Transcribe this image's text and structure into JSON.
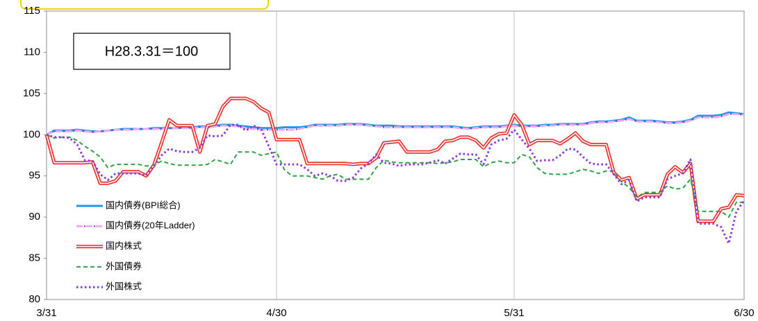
{
  "chart_data": {
    "type": "line",
    "annotation": "H28.3.31＝100",
    "categories": [
      "3/31",
      null,
      null,
      null,
      null,
      null,
      null,
      null,
      null,
      null,
      null,
      null,
      null,
      null,
      null,
      null,
      null,
      null,
      null,
      null,
      null,
      null,
      null,
      null,
      null,
      null,
      null,
      null,
      null,
      null,
      "4/30",
      null,
      null,
      null,
      null,
      null,
      null,
      null,
      null,
      null,
      null,
      null,
      null,
      null,
      null,
      null,
      null,
      null,
      null,
      null,
      null,
      null,
      null,
      null,
      null,
      null,
      null,
      null,
      null,
      null,
      null,
      "5/31",
      null,
      null,
      null,
      null,
      null,
      null,
      null,
      null,
      null,
      null,
      null,
      null,
      null,
      null,
      null,
      null,
      null,
      null,
      null,
      null,
      null,
      null,
      null,
      null,
      null,
      null,
      null,
      null,
      null,
      "6/30"
    ],
    "ylim": [
      80,
      115
    ],
    "yticks": [
      80,
      85,
      90,
      95,
      100,
      105,
      110,
      115
    ],
    "xgrid": true,
    "legend": "lower-left",
    "series": [
      {
        "name": "国内債券(BPI総合)",
        "color": "#2196e8",
        "values": [
          100,
          100.5,
          100.5,
          100.5,
          100.6,
          100.5,
          100.4,
          100.4,
          100.5,
          100.6,
          100.7,
          100.7,
          100.7,
          100.7,
          100.8,
          100.8,
          100.8,
          100.8,
          100.9,
          100.9,
          101,
          101,
          101.1,
          101.2,
          101.2,
          101.1,
          101,
          100.9,
          100.8,
          100.8,
          100.8,
          100.9,
          100.9,
          100.9,
          101,
          101.2,
          101.2,
          101.2,
          101.2,
          101.3,
          101.3,
          101.3,
          101.2,
          101.1,
          101.1,
          101.1,
          101,
          101,
          101,
          101,
          101,
          101,
          101,
          101,
          100.9,
          100.8,
          100.9,
          101,
          101,
          101,
          101.1,
          101.2,
          101.1,
          101.1,
          101.1,
          101.2,
          101.2,
          101.3,
          101.3,
          101.3,
          101.3,
          101.5,
          101.6,
          101.6,
          101.7,
          101.8,
          102.1,
          101.7,
          101.7,
          101.7,
          101.6,
          101.5,
          101.5,
          101.6,
          101.8,
          102.3,
          102.3,
          102.3,
          102.4,
          102.7,
          102.6,
          102.5
        ]
      },
      {
        "name": "国内債券(20年Ladder)",
        "color": "#f5a8f0",
        "values": [
          100,
          100.4,
          100.4,
          100.4,
          100.5,
          100.4,
          100.3,
          100.4,
          100.5,
          100.6,
          100.6,
          100.6,
          100.7,
          100.7,
          100.7,
          100.7,
          100.8,
          100.8,
          100.8,
          100.8,
          100.9,
          100.9,
          101,
          101.1,
          101.1,
          101,
          100.8,
          100.7,
          100.6,
          100.6,
          100.6,
          100.6,
          100.6,
          100.7,
          100.9,
          101.1,
          101.1,
          101.1,
          101.1,
          101.2,
          101.2,
          101.2,
          101.1,
          101,
          100.9,
          100.9,
          100.9,
          100.9,
          100.9,
          100.9,
          100.9,
          100.9,
          100.9,
          100.9,
          100.8,
          100.7,
          100.8,
          100.9,
          100.9,
          100.9,
          101,
          101.1,
          101,
          101,
          101,
          101.1,
          101.1,
          101.2,
          101.2,
          101.2,
          101.2,
          101.4,
          101.5,
          101.5,
          101.6,
          101.7,
          101.9,
          101.6,
          101.6,
          101.6,
          101.5,
          101.4,
          101.4,
          101.5,
          101.7,
          102.1,
          102.1,
          102.1,
          102.2,
          102.5,
          102.5,
          102.4
        ]
      },
      {
        "name": "国内株式",
        "color": "#e8322e",
        "values": [
          100,
          96.6,
          96.6,
          96.6,
          96.6,
          96.6,
          96.7,
          94.1,
          94.1,
          94.4,
          95.5,
          95.5,
          95.5,
          95,
          96.3,
          99,
          101.8,
          101.1,
          101.1,
          101.1,
          97.9,
          101.1,
          101.3,
          103.4,
          104.4,
          104.4,
          104.4,
          104,
          103.2,
          102.7,
          99.4,
          99.4,
          99.4,
          99.4,
          96.5,
          96.5,
          96.5,
          96.5,
          96.5,
          96.5,
          96.4,
          96.5,
          96.5,
          97.2,
          99,
          99.1,
          99.2,
          97.9,
          97.9,
          97.9,
          97.9,
          98.2,
          99.2,
          99.3,
          99.7,
          99.7,
          99.3,
          98.4,
          99.6,
          100.1,
          100.2,
          102.4,
          101.2,
          98.8,
          99.3,
          99.3,
          99.3,
          98.9,
          99.5,
          100.2,
          99.2,
          98.8,
          98.8,
          98.8,
          95.4,
          94.5,
          94.8,
          92.2,
          92.7,
          92.7,
          92.7,
          95.2,
          96.1,
          95.4,
          96.5,
          89.5,
          89.5,
          89.5,
          91,
          91.2,
          92.7,
          92.6
        ]
      },
      {
        "name": "外国債券",
        "color": "#2ca344",
        "values": [
          100,
          99.6,
          99.7,
          99.7,
          99.3,
          98.6,
          98,
          97.3,
          96,
          96.4,
          96.4,
          96.4,
          96.4,
          96.2,
          96.3,
          96.8,
          96.5,
          96.3,
          96.3,
          96.3,
          96.3,
          96.4,
          97,
          96.7,
          96.4,
          97.9,
          97.9,
          97.9,
          97.5,
          97.7,
          97.9,
          95.8,
          95,
          95,
          95,
          94.8,
          94.6,
          95,
          95.2,
          94.6,
          94.6,
          94.6,
          94.6,
          96,
          96.9,
          96.7,
          96.6,
          96.6,
          96.6,
          96.6,
          96.6,
          96.5,
          96.6,
          96.7,
          97,
          97,
          97,
          96.1,
          96.6,
          96.8,
          96.6,
          96.6,
          97.6,
          97.3,
          96,
          95.3,
          95.2,
          95.2,
          95.2,
          95.5,
          95.8,
          95.6,
          95.3,
          95.6,
          95.6,
          94.3,
          93.6,
          92.4,
          93,
          93,
          93,
          93.8,
          93.4,
          93.5,
          94.6,
          90.7,
          90.7,
          90.7,
          90.7,
          90,
          91.8,
          91.8
        ]
      },
      {
        "name": "外国株式",
        "color": "#8a3ad8",
        "values": [
          100,
          99.7,
          99.7,
          99.6,
          98.8,
          96.9,
          96.8,
          95.2,
          94.5,
          95.3,
          95.3,
          95.3,
          95.3,
          95,
          96.2,
          97.5,
          98.3,
          98,
          97.9,
          97.9,
          98.4,
          99.9,
          99.8,
          99.9,
          101.2,
          101.2,
          100.5,
          101.1,
          100.7,
          98.6,
          96.4,
          96.4,
          96.4,
          96.4,
          95.8,
          95,
          95.3,
          95,
          94.4,
          94.4,
          94.8,
          95.9,
          96.5,
          97.6,
          96.6,
          96.5,
          96.2,
          96.4,
          96.4,
          96.4,
          96.6,
          96.9,
          96.5,
          97.1,
          97.7,
          97.6,
          97.6,
          96.4,
          98.8,
          99.3,
          99.5,
          100.6,
          99.4,
          98.3,
          96.8,
          96.9,
          96.9,
          97.5,
          98.3,
          98.2,
          97.3,
          96.5,
          96.4,
          96.4,
          95.2,
          94,
          94.5,
          91.9,
          92.4,
          92.4,
          92.4,
          94.6,
          95,
          95.3,
          97,
          89.2,
          89.2,
          89.2,
          88.8,
          86.8,
          90.7,
          92
        ]
      }
    ]
  }
}
